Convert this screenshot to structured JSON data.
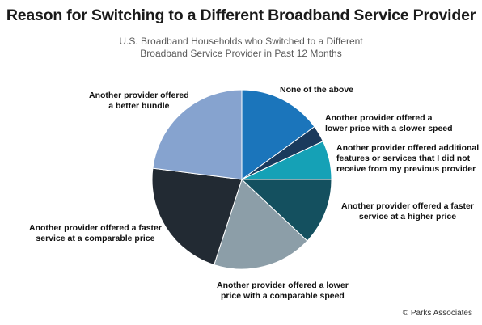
{
  "chart_data": {
    "type": "pie",
    "title": "Reason for Switching to a Different Broadband Service Provider",
    "subtitle": [
      "U.S. Broadband Households who Switched to a Different",
      "Broadband Service Provider in Past 12 Months"
    ],
    "slices": [
      {
        "lines": [
          "None of the above"
        ],
        "value": 15,
        "color": "#1b75bb"
      },
      {
        "lines": [
          "Another provider offered a",
          "lower price with a slower speed"
        ],
        "value": 3,
        "color": "#1a3a5c"
      },
      {
        "lines": [
          "Another provider offered additional",
          "features or services that I did not",
          "receive from my previous provider"
        ],
        "value": 7,
        "color": "#15a1b6"
      },
      {
        "lines": [
          "Another provider offered a faster",
          "service at a higher price"
        ],
        "value": 12,
        "color": "#14505f"
      },
      {
        "lines": [
          "Another provider offered a lower",
          "price with a comparable speed"
        ],
        "value": 18,
        "color": "#8c9ea8"
      },
      {
        "lines": [
          "Another provider offered a faster",
          "service at a comparable price"
        ],
        "value": 22,
        "color": "#222a33"
      },
      {
        "lines": [
          "Another provider offered",
          "a better bundle"
        ],
        "value": 23,
        "color": "#86a3cf"
      }
    ]
  },
  "footer": {
    "copyright": "© Parks Associates"
  }
}
